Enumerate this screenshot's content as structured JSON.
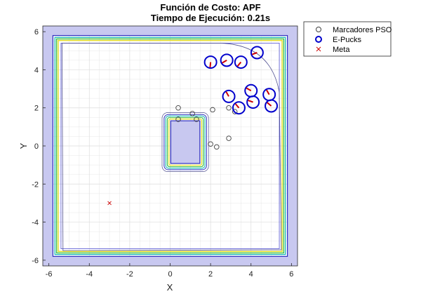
{
  "chart_data": {
    "type": "scatter",
    "title": "Función de Costo: APF",
    "subtitle": "Tiempo de Ejecución: 0.21s",
    "xlabel": "X",
    "ylabel": "Y",
    "xlim": [
      -6.3,
      6.3
    ],
    "ylim": [
      -6.3,
      6.3
    ],
    "xticks": [
      -6,
      -4,
      -2,
      0,
      2,
      4,
      6
    ],
    "yticks": [
      -6,
      -4,
      -2,
      0,
      2,
      4,
      6
    ],
    "grid": true,
    "legend_position": "top-right",
    "legend": [
      "Marcadores PSO",
      "E-Pucks",
      "Meta"
    ],
    "series": [
      {
        "name": "Marcadores PSO",
        "marker": "circle-open",
        "color": "#404040",
        "x": [
          0.4,
          1.1,
          1.3,
          0.4,
          2.1,
          2.9,
          3.2,
          2.0,
          2.3,
          2.9
        ],
        "y": [
          2.0,
          1.7,
          1.4,
          1.4,
          1.9,
          2.0,
          1.8,
          0.1,
          -0.05,
          0.4
        ]
      },
      {
        "name": "E-Pucks",
        "marker": "circle-heading",
        "color": "#0000cc",
        "heading_color": "#cc0000",
        "x": [
          2.0,
          2.8,
          3.5,
          4.3,
          2.9,
          3.4,
          4.0,
          4.1,
          4.9,
          5.0
        ],
        "y": [
          4.4,
          4.5,
          4.4,
          4.9,
          2.6,
          2.0,
          2.9,
          2.3,
          2.7,
          2.1
        ],
        "heading_deg": [
          -95,
          210,
          230,
          200,
          120,
          130,
          150,
          160,
          120,
          140
        ]
      },
      {
        "name": "Meta",
        "marker": "x",
        "color": "#cc0000",
        "x": [
          -3.0
        ],
        "y": [
          -3.0
        ]
      }
    ],
    "colors": {
      "field_fill": "#c8c8f0",
      "contour_outer": "#3030c0",
      "contour_cyan": "#30c0c0",
      "contour_green": "#40c040",
      "contour_yellow": "#e8e020",
      "contour_inner": "#5050d0",
      "border_line": "#505090",
      "grid": "#dcdcdc",
      "axes": "#262626"
    }
  }
}
